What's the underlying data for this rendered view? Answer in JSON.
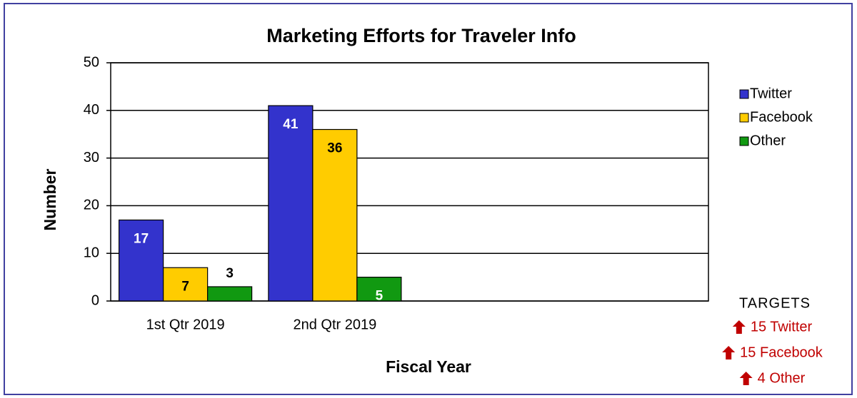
{
  "chart_data": {
    "type": "bar",
    "title": "Marketing Efforts for Traveler Info",
    "x_label": "Fiscal Year",
    "y_label": "Number",
    "categories": [
      "1st Qtr 2019",
      "2nd Qtr 2019",
      null,
      null
    ],
    "series": [
      {
        "name": "Twitter",
        "color": "#3333cc",
        "label_color": "#ffffff",
        "values": [
          17,
          41,
          null,
          null
        ]
      },
      {
        "name": "Facebook",
        "color": "#ffcc00",
        "label_color": "#000000",
        "values": [
          7,
          36,
          null,
          null
        ]
      },
      {
        "name": "Other",
        "color": "#119911",
        "label_color": "#ffffff",
        "values": [
          3,
          5,
          null,
          null
        ]
      }
    ],
    "ylim": [
      0,
      50
    ],
    "yticks": [
      0,
      10,
      20,
      30,
      40,
      50
    ],
    "grid": true,
    "legend": "right",
    "targets": {
      "title": "TARGETS",
      "items": [
        "15 Twitter",
        "15 Facebook",
        "4 Other"
      ]
    }
  }
}
